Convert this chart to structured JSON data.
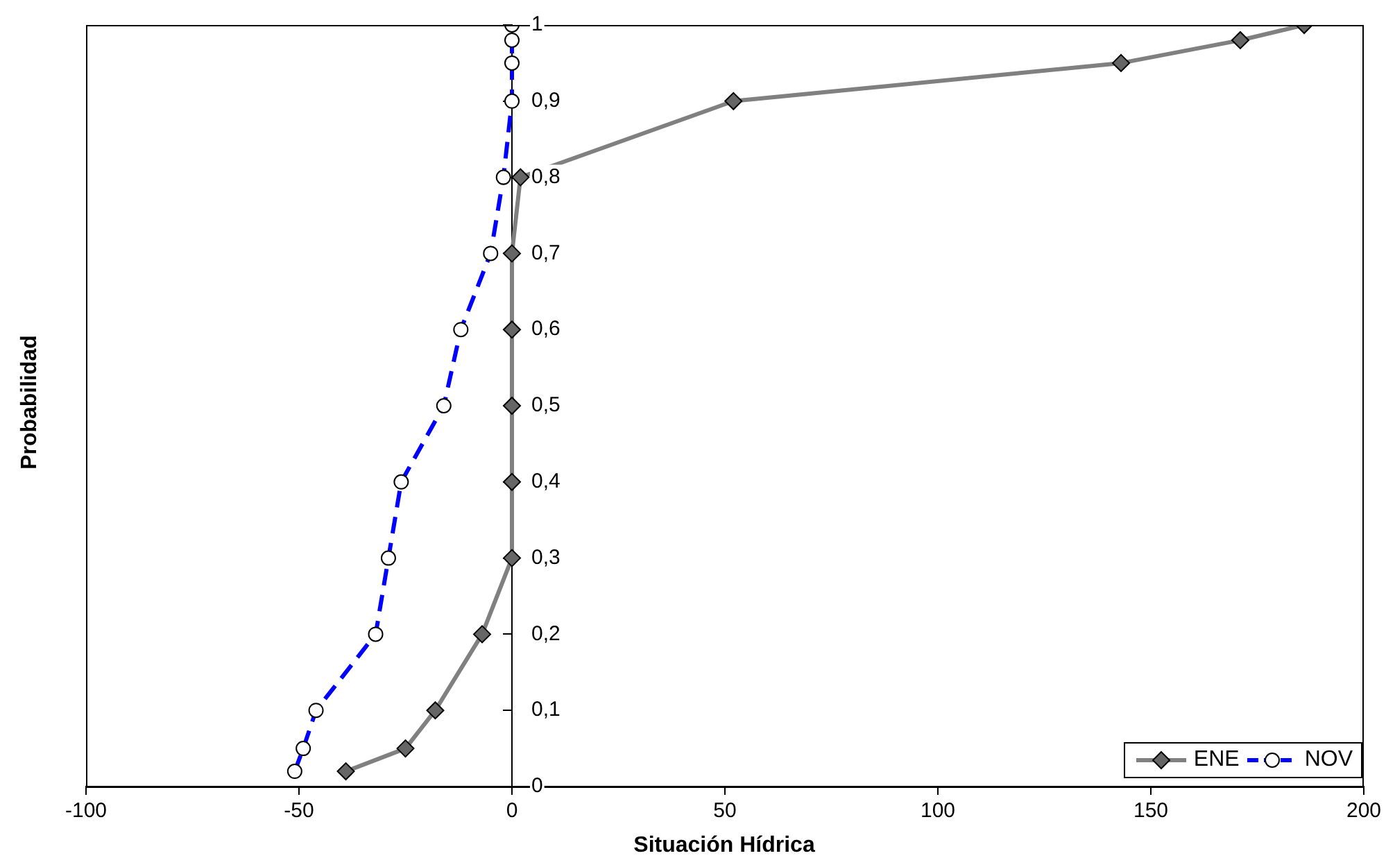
{
  "chart_data": {
    "type": "line",
    "xlabel": "Situación Hídrica",
    "ylabel": "Probabilidad",
    "xlim": [
      -100,
      200
    ],
    "xticks": [
      -100,
      -50,
      0,
      50,
      100,
      150,
      200
    ],
    "ylim": [
      0,
      1
    ],
    "yticks": [
      0,
      {
        "value": 0.1,
        "label": "0,1"
      },
      {
        "value": 0.2,
        "label": "0,2"
      },
      {
        "value": 0.3,
        "label": "0,3"
      },
      {
        "value": 0.4,
        "label": "0,4"
      },
      {
        "value": 0.5,
        "label": "0,5"
      },
      {
        "value": 0.6,
        "label": "0,6"
      },
      {
        "value": 0.7,
        "label": "0,7"
      },
      {
        "value": 0.8,
        "label": "0,8"
      },
      {
        "value": 0.9,
        "label": "0,9"
      },
      1
    ],
    "grid": false,
    "legend": "bottom right",
    "series": [
      {
        "name": "ENE",
        "color": "#808080",
        "marker": "diamond",
        "line_style": "solid",
        "x": [
          -39,
          -25,
          -18,
          -7,
          0,
          0,
          0,
          0,
          0,
          2,
          52,
          143,
          171,
          186
        ],
        "values": [
          0.02,
          0.05,
          0.1,
          0.2,
          0.3,
          0.4,
          0.5,
          0.6,
          0.7,
          0.8,
          0.9,
          0.95,
          0.98,
          1
        ]
      },
      {
        "name": "NOV",
        "color": "#0000ff",
        "marker": "circle",
        "line_style": "dashed",
        "x": [
          -51,
          -49,
          -46,
          -32,
          -29,
          -26,
          -16,
          -12,
          -5,
          -2,
          0,
          0,
          0,
          0
        ],
        "values": [
          0.02,
          0.05,
          0.1,
          0.2,
          0.3,
          0.4,
          0.5,
          0.6,
          0.7,
          0.8,
          0.9,
          0.95,
          0.98,
          1
        ]
      }
    ]
  }
}
